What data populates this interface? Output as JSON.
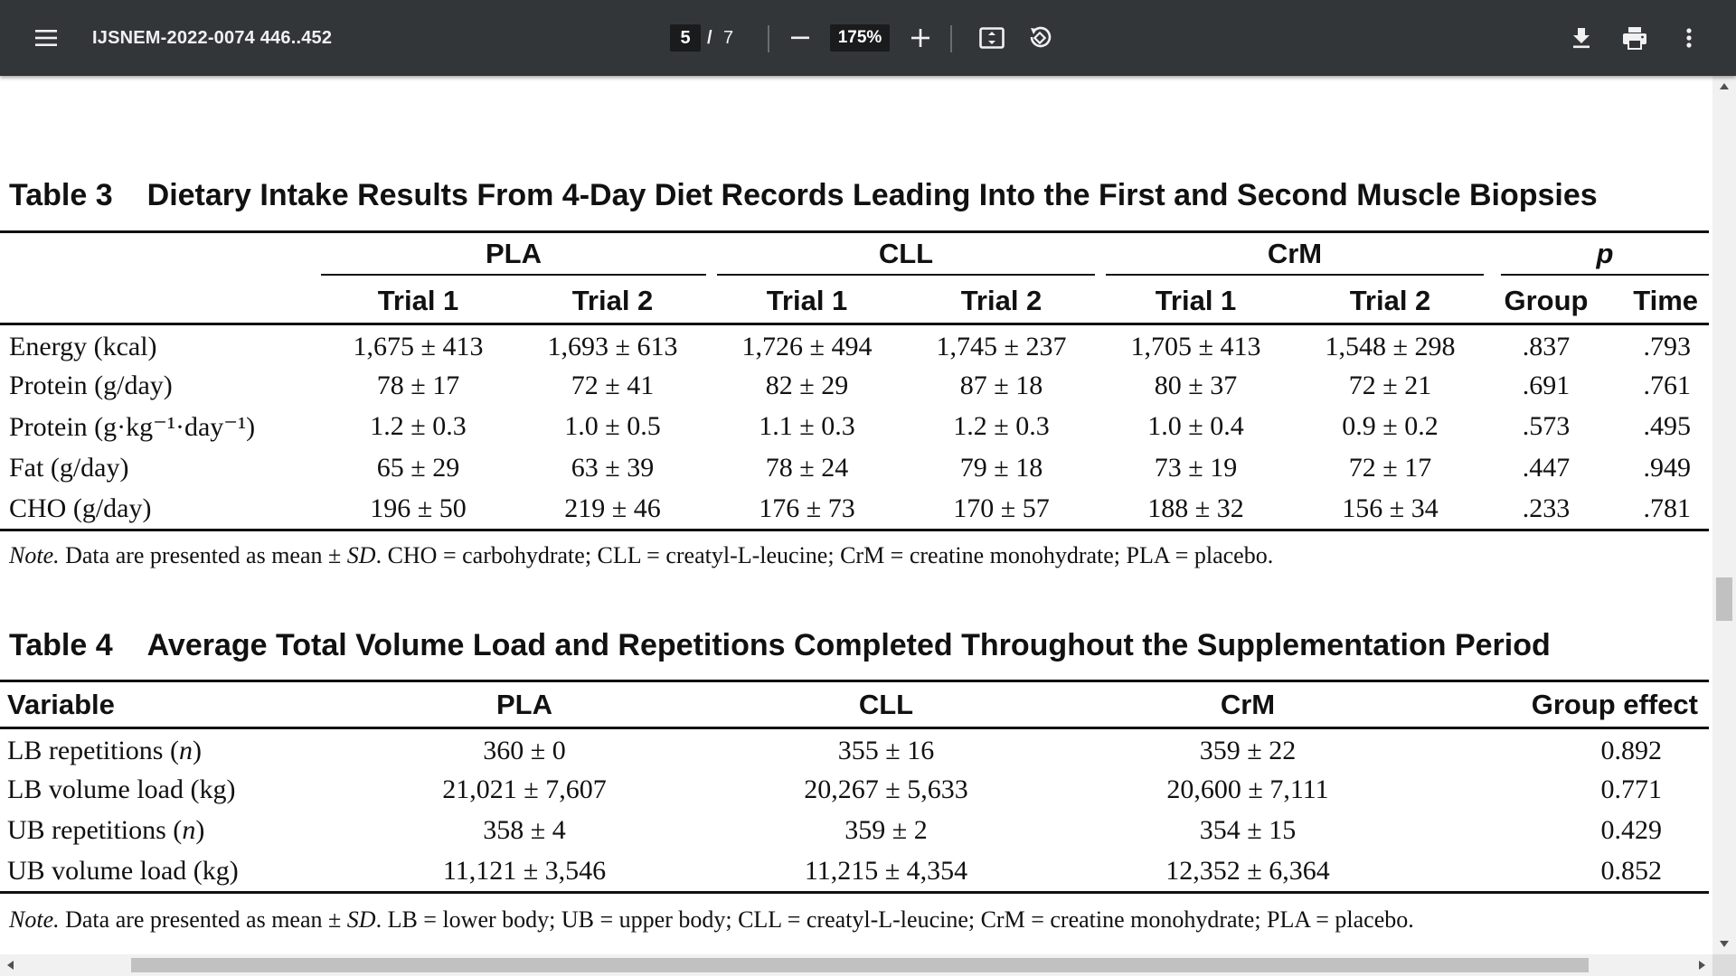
{
  "toolbar": {
    "title": "IJSNEM-2022-0074 446..452",
    "page_current": "5",
    "page_separator": "/",
    "page_total": "7",
    "zoom": "175%",
    "icons": [
      "menu-icon",
      "zoom-out-icon",
      "zoom-in-icon",
      "fit-page-icon",
      "rotate-icon",
      "download-icon",
      "print-icon",
      "more-vert-icon"
    ]
  },
  "table3": {
    "number": "Table 3",
    "title": "Dietary Intake Results From 4-Day Diet Records Leading Into the First and Second Muscle Biopsies",
    "groups": [
      "PLA",
      "CLL",
      "CrM",
      "p"
    ],
    "subheaders": [
      "Trial 1",
      "Trial 2",
      "Trial 1",
      "Trial 2",
      "Trial 1",
      "Trial 2",
      "Group",
      "Time"
    ],
    "rows": [
      {
        "label": "Energy (kcal)",
        "values": [
          "1,675 ± 413",
          "1,693 ± 613",
          "1,726 ± 494",
          "1,745 ± 237",
          "1,705 ± 413",
          "1,548 ± 298",
          ".837",
          ".793"
        ]
      },
      {
        "label": "Protein (g/day)",
        "values": [
          "78 ± 17",
          "72 ± 41",
          "82 ± 29",
          "87 ± 18",
          "80 ± 37",
          "72 ± 21",
          ".691",
          ".761"
        ]
      },
      {
        "label": "Protein (g·kg⁻¹·day⁻¹)",
        "values": [
          "1.2 ± 0.3",
          "1.0 ± 0.5",
          "1.1 ± 0.3",
          "1.2 ± 0.3",
          "1.0 ± 0.4",
          "0.9 ± 0.2",
          ".573",
          ".495"
        ]
      },
      {
        "label": "Fat (g/day)",
        "values": [
          "65 ± 29",
          "63 ± 39",
          "78 ± 24",
          "79 ± 18",
          "73 ± 19",
          "72 ± 17",
          ".447",
          ".949"
        ]
      },
      {
        "label": "CHO (g/day)",
        "values": [
          "196 ± 50",
          "219 ± 46",
          "176 ± 73",
          "170 ± 57",
          "188 ± 32",
          "156 ± 34",
          ".233",
          ".781"
        ]
      }
    ],
    "note_label": "Note.",
    "note_text_a": " Data are presented as mean ± ",
    "note_sd": "SD",
    "note_text_b": ". CHO = carbohydrate; CLL = creatyl-L-leucine; CrM = creatine monohydrate; PLA = placebo."
  },
  "table4": {
    "number": "Table 4",
    "title": "Average Total Volume Load and Repetitions Completed Throughout the Supplementation Period",
    "headers": [
      "Variable",
      "PLA",
      "CLL",
      "CrM",
      "Group effect"
    ],
    "rows": [
      {
        "label_main": "LB repetitions (",
        "label_italic": "n",
        "label_end": ")",
        "values": [
          "360 ± 0",
          "355 ± 16",
          "359 ± 22",
          "0.892"
        ]
      },
      {
        "label_main": "LB volume load (kg)",
        "label_italic": "",
        "label_end": "",
        "values": [
          "21,021 ± 7,607",
          "20,267 ± 5,633",
          "20,600 ± 7,111",
          "0.771"
        ]
      },
      {
        "label_main": "UB repetitions (",
        "label_italic": "n",
        "label_end": ")",
        "values": [
          "358 ± 4",
          "359 ± 2",
          "354 ± 15",
          "0.429"
        ]
      },
      {
        "label_main": "UB volume load (kg)",
        "label_italic": "",
        "label_end": "",
        "values": [
          "11,121 ± 3,546",
          "11,215 ± 4,354",
          "12,352 ± 6,364",
          "0.852"
        ]
      }
    ],
    "note_label": "Note.",
    "note_text_a": " Data are presented as mean ± ",
    "note_sd": "SD",
    "note_text_b": ". LB = lower body; UB = upper body; CLL = creatyl-L-leucine; CrM = creatine monohydrate; PLA = placebo."
  }
}
